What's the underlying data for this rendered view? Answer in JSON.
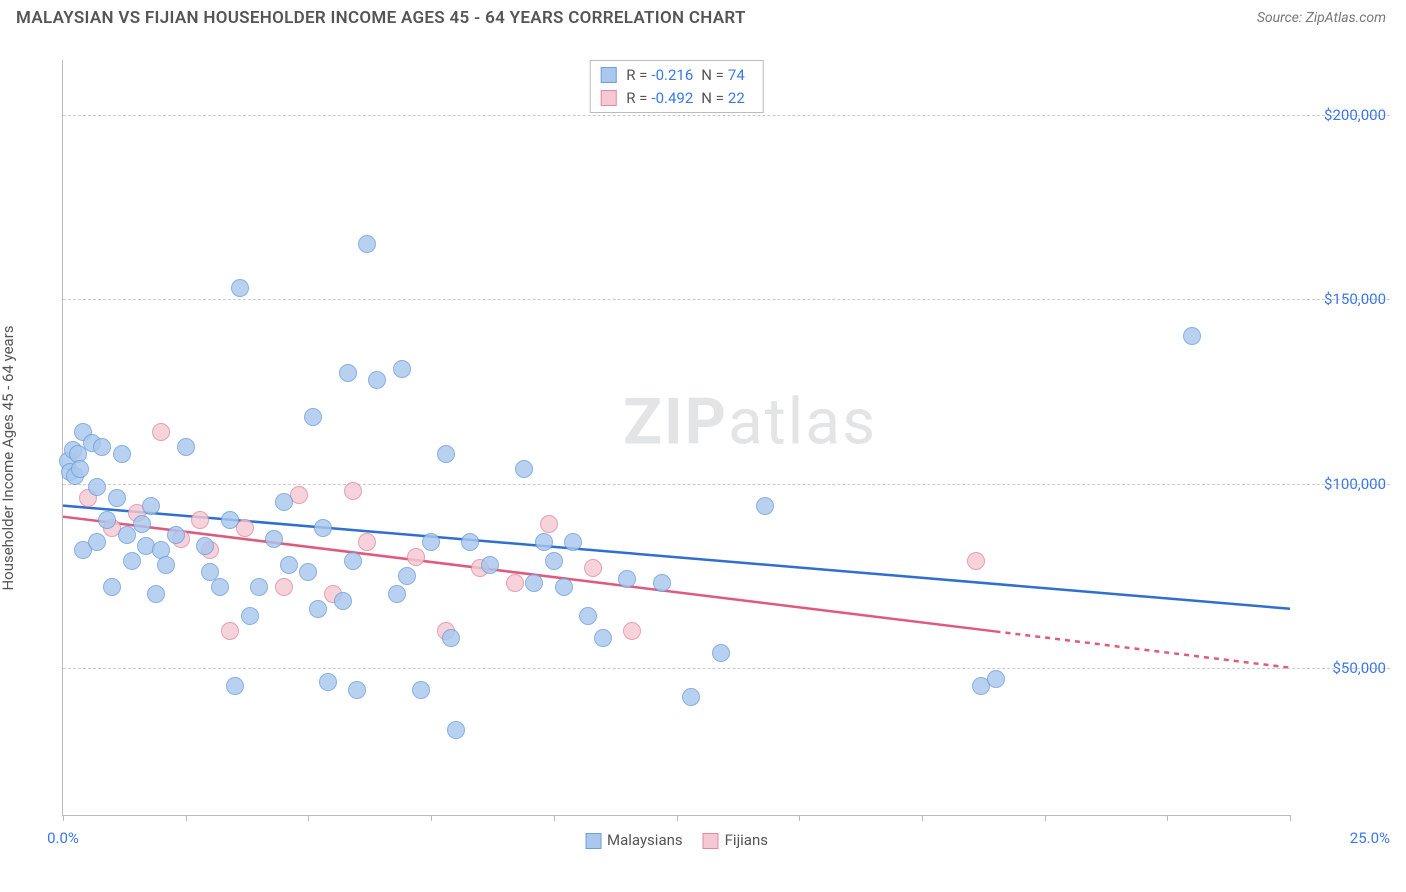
{
  "header": {
    "title": "MALAYSIAN VS FIJIAN HOUSEHOLDER INCOME AGES 45 - 64 YEARS CORRELATION CHART",
    "source": "Source: ZipAtlas.com"
  },
  "watermark": {
    "prefix": "ZIP",
    "suffix": "atlas"
  },
  "chart": {
    "type": "scatter",
    "y_axis_title": "Householder Income Ages 45 - 64 years",
    "xlim": [
      0,
      25
    ],
    "x_unit": "%",
    "ylim": [
      10000,
      215000
    ],
    "x_min_label": "0.0%",
    "x_max_label": "25.0%",
    "y_gridlines": [
      50000,
      100000,
      150000,
      200000
    ],
    "y_tick_labels": [
      "$50,000",
      "$100,000",
      "$150,000",
      "$200,000"
    ],
    "x_tick_positions": [
      0,
      2.5,
      5,
      7.5,
      10,
      12.5,
      15,
      17.5,
      20,
      22.5,
      25
    ],
    "background_color": "#ffffff",
    "grid_color": "#cccccc",
    "axis_color": "#bbbbbb",
    "tick_label_color": "#3b78e7",
    "axis_title_fontsize": 15,
    "tick_fontsize": 15,
    "marker_radius": 9,
    "marker_border_width": 1.5,
    "trend_line_width": 2.5,
    "series": {
      "malaysians": {
        "label": "Malaysians",
        "fill_color": "#aac8ee",
        "border_color": "#6e9fd8",
        "trend_color": "#2f6fcf",
        "trend_solid_x_end": 25,
        "stats": {
          "R": "-0.216",
          "N": "74"
        },
        "trend": {
          "y_at_x0": 94000,
          "y_at_xmax": 66000
        },
        "points": [
          [
            0.1,
            106000
          ],
          [
            0.15,
            103000
          ],
          [
            0.2,
            109000
          ],
          [
            0.25,
            102000
          ],
          [
            0.3,
            108000
          ],
          [
            0.35,
            104000
          ],
          [
            0.4,
            114000
          ],
          [
            0.4,
            82000
          ],
          [
            0.6,
            111000
          ],
          [
            0.7,
            99000
          ],
          [
            0.7,
            84000
          ],
          [
            0.8,
            110000
          ],
          [
            0.9,
            90000
          ],
          [
            1.0,
            72000
          ],
          [
            1.1,
            96000
          ],
          [
            1.2,
            108000
          ],
          [
            1.3,
            86000
          ],
          [
            1.4,
            79000
          ],
          [
            1.6,
            89000
          ],
          [
            1.7,
            83000
          ],
          [
            1.8,
            94000
          ],
          [
            1.9,
            70000
          ],
          [
            2.0,
            82000
          ],
          [
            2.1,
            78000
          ],
          [
            2.3,
            86000
          ],
          [
            2.5,
            110000
          ],
          [
            2.9,
            83000
          ],
          [
            3.0,
            76000
          ],
          [
            3.2,
            72000
          ],
          [
            3.4,
            90000
          ],
          [
            3.5,
            45000
          ],
          [
            3.6,
            153000
          ],
          [
            3.8,
            64000
          ],
          [
            4.0,
            72000
          ],
          [
            4.3,
            85000
          ],
          [
            4.5,
            95000
          ],
          [
            4.6,
            78000
          ],
          [
            5.0,
            76000
          ],
          [
            5.1,
            118000
          ],
          [
            5.2,
            66000
          ],
          [
            5.3,
            88000
          ],
          [
            5.7,
            68000
          ],
          [
            5.8,
            130000
          ],
          [
            5.9,
            79000
          ],
          [
            6.0,
            44000
          ],
          [
            6.2,
            165000
          ],
          [
            6.4,
            128000
          ],
          [
            6.8,
            70000
          ],
          [
            6.9,
            131000
          ],
          [
            7.0,
            75000
          ],
          [
            7.3,
            44000
          ],
          [
            7.5,
            84000
          ],
          [
            7.8,
            108000
          ],
          [
            7.9,
            58000
          ],
          [
            8.0,
            33000
          ],
          [
            8.3,
            84000
          ],
          [
            8.7,
            78000
          ],
          [
            9.4,
            104000
          ],
          [
            9.6,
            73000
          ],
          [
            9.8,
            84000
          ],
          [
            10.0,
            79000
          ],
          [
            10.2,
            72000
          ],
          [
            10.4,
            84000
          ],
          [
            10.7,
            64000
          ],
          [
            11.0,
            58000
          ],
          [
            11.5,
            74000
          ],
          [
            12.2,
            73000
          ],
          [
            12.8,
            42000
          ],
          [
            13.4,
            54000
          ],
          [
            14.3,
            94000
          ],
          [
            18.7,
            45000
          ],
          [
            23.0,
            140000
          ],
          [
            19.0,
            47000
          ],
          [
            5.4,
            46000
          ]
        ]
      },
      "fijians": {
        "label": "Fijians",
        "fill_color": "#f5c9d4",
        "border_color": "#e38aa2",
        "trend_color": "#e05a7d",
        "trend_solid_x_end": 19,
        "stats": {
          "R": "-0.492",
          "N": "22"
        },
        "trend": {
          "y_at_x0": 91000,
          "y_at_xmax": 50000
        },
        "points": [
          [
            0.5,
            96000
          ],
          [
            1.0,
            88000
          ],
          [
            1.5,
            92000
          ],
          [
            2.0,
            114000
          ],
          [
            2.4,
            85000
          ],
          [
            2.8,
            90000
          ],
          [
            3.0,
            82000
          ],
          [
            3.4,
            60000
          ],
          [
            3.7,
            88000
          ],
          [
            4.5,
            72000
          ],
          [
            4.8,
            97000
          ],
          [
            5.5,
            70000
          ],
          [
            5.9,
            98000
          ],
          [
            6.2,
            84000
          ],
          [
            7.2,
            80000
          ],
          [
            7.8,
            60000
          ],
          [
            8.5,
            77000
          ],
          [
            9.2,
            73000
          ],
          [
            9.9,
            89000
          ],
          [
            10.8,
            77000
          ],
          [
            11.6,
            60000
          ],
          [
            18.6,
            79000
          ]
        ]
      }
    },
    "legend": {
      "position": "bottom-center"
    },
    "stats_box": {
      "position": "top-center",
      "R_label": "R =",
      "N_label": "N ="
    }
  }
}
